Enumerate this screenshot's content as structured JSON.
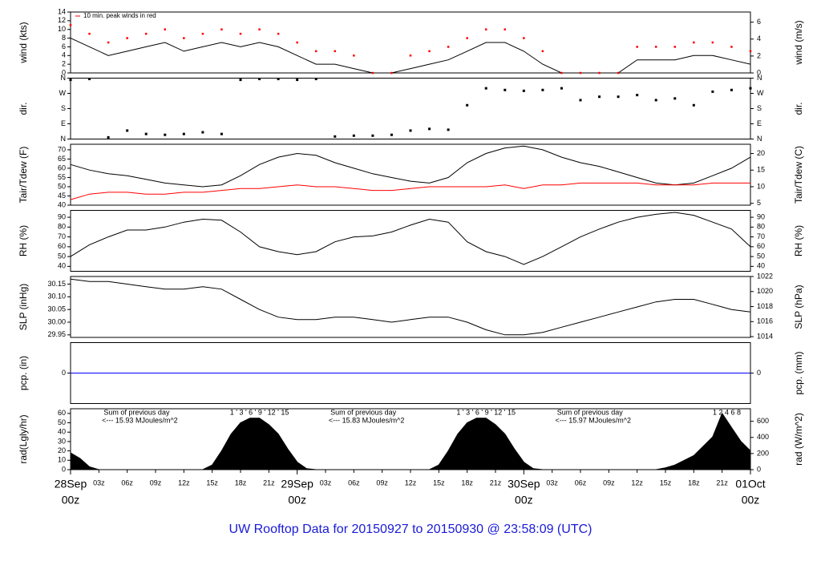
{
  "title": "UW Rooftop Data for 20150927  to  20150930 @ 23:58:09  (UTC)",
  "chart_data": [
    {
      "type": "line",
      "ylabel": "wind (kts)",
      "y2label": "wind (m/s)",
      "annotation": "10 min. peak winds in red",
      "xlim": [
        0,
        72
      ],
      "ylim": [
        0,
        14
      ],
      "yticks": [
        0,
        2,
        4,
        6,
        8,
        10,
        12,
        14
      ],
      "y2lim": [
        0,
        7.2
      ],
      "y2ticks": [
        0,
        2,
        4,
        6
      ],
      "x": [
        0,
        2,
        4,
        6,
        8,
        10,
        12,
        14,
        16,
        18,
        20,
        22,
        24,
        26,
        28,
        30,
        32,
        34,
        36,
        38,
        40,
        42,
        44,
        46,
        48,
        50,
        52,
        54,
        56,
        58,
        60,
        62,
        64,
        66,
        68,
        70,
        72
      ],
      "series": [
        {
          "name": "wind",
          "color": "#000000",
          "marker": "line",
          "values": [
            8,
            6,
            4,
            5,
            6,
            7,
            5,
            6,
            7,
            6,
            7,
            6,
            4,
            2,
            2,
            1,
            0,
            0,
            1,
            2,
            3,
            5,
            7,
            7,
            5,
            2,
            0,
            0,
            0,
            0,
            3,
            3,
            3,
            4,
            4,
            3,
            2
          ]
        },
        {
          "name": "peak",
          "color": "#ff0000",
          "marker": "dot",
          "values": [
            11,
            9,
            7,
            8,
            9,
            10,
            8,
            9,
            10,
            9,
            10,
            9,
            7,
            5,
            5,
            4,
            0,
            0,
            4,
            5,
            6,
            8,
            10,
            10,
            8,
            5,
            0,
            0,
            0,
            0,
            6,
            6,
            6,
            7,
            7,
            6,
            5
          ]
        }
      ]
    },
    {
      "type": "scatter",
      "ylabel": "dir.",
      "y2label": "dir.",
      "mirror_ticks": true,
      "xlim": [
        0,
        72
      ],
      "ylim": [
        0,
        360
      ],
      "yticks": [
        {
          "value": 0,
          "label": "N"
        },
        {
          "value": 90,
          "label": "E"
        },
        {
          "value": 180,
          "label": "S"
        },
        {
          "value": 270,
          "label": "W"
        },
        {
          "value": 360,
          "label": "N"
        }
      ],
      "x": [
        0,
        2,
        4,
        6,
        8,
        10,
        12,
        14,
        16,
        18,
        20,
        22,
        24,
        26,
        28,
        30,
        32,
        34,
        36,
        38,
        40,
        42,
        44,
        46,
        48,
        50,
        52,
        54,
        56,
        58,
        60,
        62,
        64,
        66,
        68,
        70,
        72
      ],
      "series": [
        {
          "name": "dir",
          "color": "#000000",
          "values": [
            350,
            355,
            10,
            50,
            30,
            25,
            30,
            40,
            30,
            350,
            355,
            355,
            350,
            355,
            15,
            20,
            20,
            25,
            50,
            60,
            55,
            200,
            300,
            290,
            285,
            290,
            300,
            230,
            250,
            250,
            260,
            230,
            240,
            200,
            280,
            290,
            300
          ]
        }
      ]
    },
    {
      "type": "line",
      "ylabel": "Tair/Tdew (F)",
      "y2label": "Tair/Tdew (C)",
      "xlim": [
        0,
        72
      ],
      "ylim": [
        40,
        73
      ],
      "yticks": [
        40,
        45,
        50,
        55,
        60,
        65,
        70
      ],
      "y2lim": [
        4.44,
        22.78
      ],
      "y2ticks": [
        5,
        10,
        15,
        20
      ],
      "x": [
        0,
        2,
        4,
        6,
        8,
        10,
        12,
        14,
        16,
        18,
        20,
        22,
        24,
        26,
        28,
        30,
        32,
        34,
        36,
        38,
        40,
        42,
        44,
        46,
        48,
        50,
        52,
        54,
        56,
        58,
        60,
        62,
        64,
        66,
        68,
        70,
        72
      ],
      "series": [
        {
          "name": "Tair",
          "color": "#000000",
          "marker": "line",
          "values": [
            62,
            59,
            57,
            56,
            54,
            52,
            51,
            50,
            51,
            56,
            62,
            66,
            68,
            67,
            63,
            60,
            57,
            55,
            53,
            52,
            55,
            63,
            68,
            71,
            72,
            70,
            66,
            63,
            61,
            58,
            55,
            52,
            51,
            52,
            56,
            60,
            66
          ]
        },
        {
          "name": "Tdew",
          "color": "#ff0000",
          "marker": "line",
          "values": [
            43,
            46,
            47,
            47,
            46,
            46,
            47,
            47,
            48,
            49,
            49,
            50,
            51,
            50,
            50,
            49,
            48,
            48,
            49,
            50,
            50,
            50,
            50,
            51,
            49,
            51,
            51,
            52,
            52,
            52,
            52,
            51,
            51,
            51,
            52,
            52,
            52
          ]
        }
      ]
    },
    {
      "type": "line",
      "ylabel": "RH (%)",
      "y2label": "RH (%)",
      "mirror_ticks": true,
      "xlim": [
        0,
        72
      ],
      "ylim": [
        35,
        97
      ],
      "yticks": [
        40,
        50,
        60,
        70,
        80,
        90
      ],
      "x": [
        0,
        2,
        4,
        6,
        8,
        10,
        12,
        14,
        16,
        18,
        20,
        22,
        24,
        26,
        28,
        30,
        32,
        34,
        36,
        38,
        40,
        42,
        44,
        46,
        48,
        50,
        52,
        54,
        56,
        58,
        60,
        62,
        64,
        66,
        68,
        70,
        72
      ],
      "series": [
        {
          "name": "RH",
          "color": "#000000",
          "marker": "line",
          "values": [
            50,
            62,
            70,
            77,
            77,
            80,
            85,
            88,
            87,
            75,
            60,
            55,
            52,
            55,
            65,
            70,
            71,
            75,
            82,
            88,
            85,
            65,
            55,
            50,
            42,
            50,
            60,
            70,
            78,
            85,
            90,
            93,
            95,
            92,
            85,
            78,
            60
          ]
        }
      ]
    },
    {
      "type": "line",
      "ylabel": "SLP (inHg)",
      "y2label": "SLP (hPa)",
      "xlim": [
        0,
        72
      ],
      "ylim": [
        29.94,
        30.18
      ],
      "yticks": [
        29.95,
        {
          "value": 30,
          "label": "30.00"
        },
        30.05,
        {
          "value": 30.1,
          "label": "30.10"
        },
        30.15
      ],
      "y2lim": [
        1013.9,
        1022
      ],
      "y2ticks": [
        1014,
        1016,
        1018,
        1020,
        1022
      ],
      "x": [
        0,
        2,
        4,
        6,
        8,
        10,
        12,
        14,
        16,
        18,
        20,
        22,
        24,
        26,
        28,
        30,
        32,
        34,
        36,
        38,
        40,
        42,
        44,
        46,
        48,
        50,
        52,
        54,
        56,
        58,
        60,
        62,
        64,
        66,
        68,
        70,
        72
      ],
      "series": [
        {
          "name": "SLP",
          "color": "#000000",
          "marker": "line",
          "values": [
            30.17,
            30.16,
            30.16,
            30.15,
            30.14,
            30.13,
            30.13,
            30.14,
            30.13,
            30.09,
            30.05,
            30.02,
            30.01,
            30.01,
            30.02,
            30.02,
            30.01,
            30.0,
            30.01,
            30.02,
            30.02,
            30.0,
            29.97,
            29.95,
            29.95,
            29.96,
            29.98,
            30.0,
            30.02,
            30.04,
            30.06,
            30.08,
            30.09,
            30.09,
            30.07,
            30.05,
            30.04
          ]
        }
      ]
    },
    {
      "type": "line",
      "ylabel": "pcp. (in)",
      "y2label": "pcp. (mm)",
      "mirror_ticks": true,
      "xlim": [
        0,
        72
      ],
      "ylim": [
        -1,
        1
      ],
      "yticks": [
        0
      ],
      "x": [
        0,
        72
      ],
      "series": [
        {
          "name": "pcp",
          "color": "#0000ff",
          "marker": "line",
          "values": [
            0,
            0
          ]
        }
      ]
    },
    {
      "type": "area",
      "ylabel": "rad(Lgly/hr)",
      "y2label": "rad (W/m^2)",
      "xlim": [
        0,
        72
      ],
      "ylim": [
        0,
        65
      ],
      "yticks": [
        0,
        10,
        20,
        30,
        40,
        50,
        60
      ],
      "y2lim": [
        0,
        756
      ],
      "y2ticks": [
        0,
        200,
        400,
        600
      ],
      "x": [
        0,
        1,
        2,
        3,
        4,
        5,
        6,
        7,
        8,
        9,
        10,
        11,
        12,
        13,
        14,
        15,
        16,
        17,
        18,
        19,
        20,
        21,
        22,
        23,
        24,
        25,
        26,
        27,
        28,
        29,
        30,
        31,
        32,
        33,
        34,
        35,
        36,
        37,
        38,
        39,
        40,
        41,
        42,
        43,
        44,
        45,
        46,
        47,
        48,
        49,
        50,
        51,
        52,
        53,
        54,
        55,
        56,
        57,
        58,
        59,
        60,
        61,
        62,
        63,
        64,
        65,
        66,
        67,
        68,
        69,
        70,
        71,
        72
      ],
      "series": [
        {
          "name": "rad",
          "color": "#000000",
          "values": [
            18,
            12,
            3,
            0,
            0,
            0,
            0,
            0,
            0,
            0,
            0,
            0,
            0,
            0,
            0,
            5,
            20,
            38,
            50,
            55,
            55,
            48,
            38,
            22,
            8,
            1,
            0,
            0,
            0,
            0,
            0,
            0,
            0,
            0,
            0,
            0,
            0,
            0,
            0,
            5,
            20,
            38,
            50,
            55,
            55,
            48,
            38,
            22,
            8,
            1,
            0,
            0,
            0,
            0,
            0,
            0,
            0,
            0,
            0,
            0,
            0,
            0,
            0,
            2,
            5,
            10,
            15,
            25,
            35,
            60,
            45,
            30,
            20
          ]
        }
      ],
      "notes": [
        {
          "x": 7,
          "lines": [
            "Sum of previous day",
            "<--- 15.93 MJoules/m^2"
          ]
        },
        {
          "x": 31,
          "lines": [
            "Sum of previous day",
            "<--- 15.83 MJoules/m^2"
          ]
        },
        {
          "x": 55,
          "lines": [
            "Sum of previous day",
            "<--- 15.97 MJoules/m^2"
          ]
        }
      ],
      "hour_marks": [
        {
          "x": 20,
          "text": "1 ' 3 ' 6 ' 9 ' 12 ' 15"
        },
        {
          "x": 44,
          "text": "1 ' 3 ' 6 ' 9 ' 12 ' 15"
        },
        {
          "x": 69.5,
          "text": "1   2   4   6   8"
        }
      ],
      "xticks": [
        {
          "value": 3,
          "label": "03z"
        },
        {
          "value": 6,
          "label": "06z"
        },
        {
          "value": 9,
          "label": "09z"
        },
        {
          "value": 12,
          "label": "12z"
        },
        {
          "value": 15,
          "label": "15z"
        },
        {
          "value": 18,
          "label": "18z"
        },
        {
          "value": 21,
          "label": "21z"
        },
        {
          "value": 27,
          "label": "03z"
        },
        {
          "value": 30,
          "label": "06z"
        },
        {
          "value": 33,
          "label": "09z"
        },
        {
          "value": 36,
          "label": "12z"
        },
        {
          "value": 39,
          "label": "15z"
        },
        {
          "value": 42,
          "label": "18z"
        },
        {
          "value": 45,
          "label": "21z"
        },
        {
          "value": 51,
          "label": "03z"
        },
        {
          "value": 54,
          "label": "06z"
        },
        {
          "value": 57,
          "label": "09z"
        },
        {
          "value": 60,
          "label": "12z"
        },
        {
          "value": 63,
          "label": "15z"
        },
        {
          "value": 66,
          "label": "18z"
        },
        {
          "value": 69,
          "label": "21z"
        }
      ],
      "date_ticks": [
        {
          "value": 0,
          "label": "28Sep",
          "sub": "00z"
        },
        {
          "value": 24,
          "label": "29Sep",
          "sub": "00z"
        },
        {
          "value": 48,
          "label": "30Sep",
          "sub": "00z"
        },
        {
          "value": 72,
          "label": "01Oct",
          "sub": "00z"
        }
      ]
    }
  ]
}
